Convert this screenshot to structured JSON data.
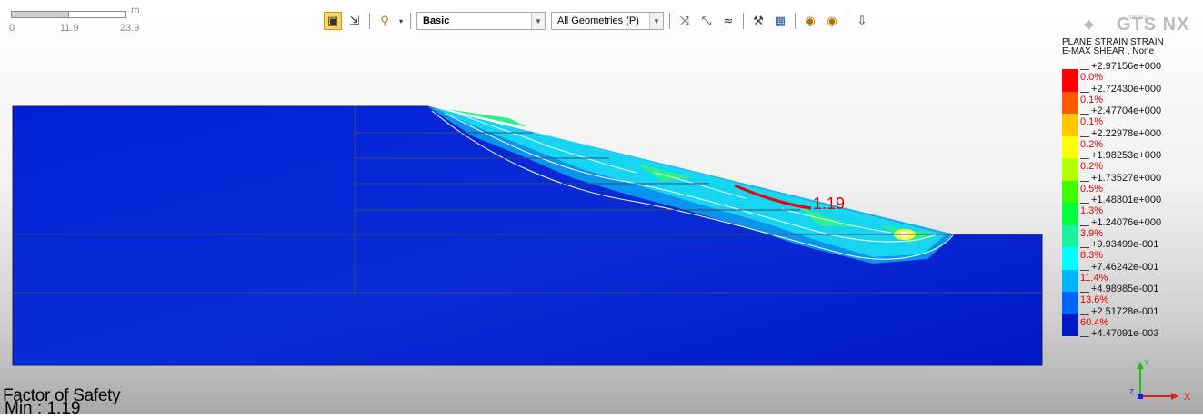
{
  "scale_bar": {
    "unit": "m",
    "labels": [
      "0",
      "11.9",
      "23.9"
    ]
  },
  "toolbar": {
    "icons": [
      "select-mode-icon",
      "select-arrow-icon",
      "geometry-display-icon",
      "rotate-view-icon",
      "zoom-fit-icon",
      "sync-icon",
      "options-icon",
      "clear-icon",
      "hide-icon",
      "render-icon",
      "show-icon",
      "pin-icon"
    ],
    "style_combo": "Basic",
    "geometry_combo": "All Geometries (P)"
  },
  "slip_surface_label": "1.19",
  "factor_of_safety": {
    "label": "Factor of Safety",
    "min_text": "Min : 1.19"
  },
  "logo": {
    "small": "midas",
    "brand": "GTS NX"
  },
  "legend": {
    "title_line1": "PLANE STRAIN STRAIN",
    "title_line2": "E-MAX SHEAR , None",
    "values": [
      "+2.97156e+000",
      "+2.72430e+000",
      "+2.47704e+000",
      "+2.22978e+000",
      "+1.98253e+000",
      "+1.73527e+000",
      "+1.48801e+000",
      "+1.24076e+000",
      "+9.93499e-001",
      "+7.46242e-001",
      "+4.98985e-001",
      "+2.51728e-001",
      "+4.47091e-003"
    ],
    "percents": [
      "0.0%",
      "0.1%",
      "0.1%",
      "0.2%",
      "0.2%",
      "0.5%",
      "1.3%",
      "3.9%",
      "8.3%",
      "11.4%",
      "13.6%",
      "60.4%"
    ],
    "colors": [
      "#ff0000",
      "#ff5a00",
      "#ffc800",
      "#ffff00",
      "#b4ff00",
      "#3cff00",
      "#00ff40",
      "#19f2a0",
      "#00ffff",
      "#00b4ff",
      "#0064ff",
      "#0019c8"
    ]
  },
  "axis": {
    "x": "X",
    "y": "Y",
    "z": "Z"
  }
}
